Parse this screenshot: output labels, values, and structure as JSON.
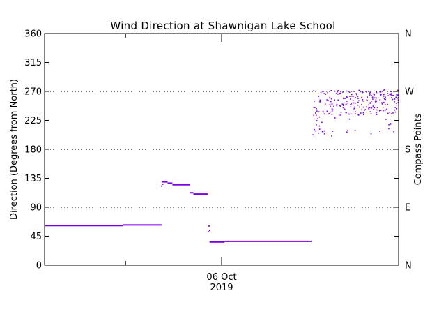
{
  "chart_data": {
    "type": "scatter",
    "title": "Wind Direction at Shawnigan Lake School",
    "ylabel": "Direction (Degrees from North)",
    "right_ylabel": "Compass Points",
    "ylim": [
      0,
      360
    ],
    "yticks": [
      0,
      45,
      90,
      135,
      180,
      225,
      270,
      315,
      360
    ],
    "xlim": [
      -2.95,
      2.95
    ],
    "xlim_note": "hours relative to 06 Oct 2019 00:00",
    "x_tick_minor": [
      -1.6
    ],
    "x_tick_major": {
      "x": 0,
      "label1": "06 Oct",
      "label2": "2019"
    },
    "compass_points": [
      {
        "deg": 0,
        "label": "N"
      },
      {
        "deg": 90,
        "label": "E"
      },
      {
        "deg": 180,
        "label": "S"
      },
      {
        "deg": 270,
        "label": "W"
      },
      {
        "deg": 360,
        "label": "N"
      }
    ],
    "dotted_gridlines": [
      90,
      180,
      270
    ],
    "marker_color": "#7b00e6",
    "segments": [
      {
        "x0": -2.95,
        "x1": -1.65,
        "y": 61.5
      },
      {
        "x0": -1.65,
        "x1": -1.0,
        "y": 62.5
      },
      {
        "x0": -1.0,
        "x1": -0.9,
        "y": 129.5
      },
      {
        "x0": -0.9,
        "x1": -0.82,
        "y": 127.5
      },
      {
        "x0": -0.82,
        "x1": -0.53,
        "y": 125.0
      },
      {
        "x0": -0.53,
        "x1": -0.47,
        "y": 112.5
      },
      {
        "x0": -0.47,
        "x1": -0.23,
        "y": 110.5
      },
      {
        "x0": -0.2,
        "x1": 0.05,
        "y": 36.0
      },
      {
        "x0": 0.05,
        "x1": 1.5,
        "y": 37.0
      }
    ],
    "points": [
      [
        -1.0,
        123
      ],
      [
        -0.98,
        126
      ],
      [
        -0.22,
        52
      ],
      [
        -0.2,
        54
      ],
      [
        -0.21,
        61
      ]
    ]
  }
}
